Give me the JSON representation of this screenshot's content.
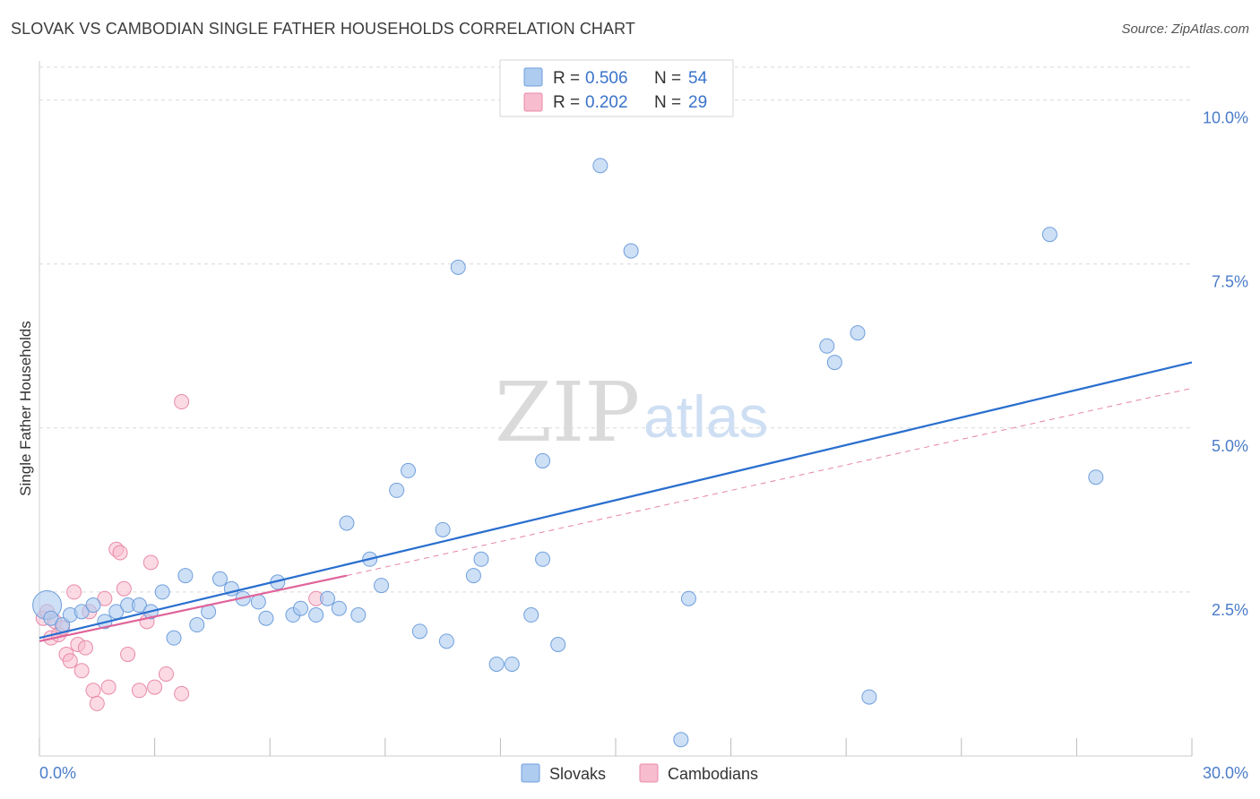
{
  "title": "SLOVAK VS CAMBODIAN SINGLE FATHER HOUSEHOLDS CORRELATION CHART",
  "source": "Source: ZipAtlas.com",
  "watermark": {
    "zip": "ZIP",
    "atlas": "atlas"
  },
  "colors": {
    "slovak_fill": "#aecbf0",
    "slovak_stroke": "#6f9fdc",
    "slovak_line": "#2a6fcf",
    "cambodian_fill": "#f7bccd",
    "cambodian_stroke": "#e98aa8",
    "cambodian_line": "#e0649a",
    "grid": "#d9d9d9",
    "tick_text": "#4a7cc9"
  },
  "legend": {
    "rows": [
      {
        "r_label": "R = ",
        "r_value": "0.506",
        "n_label": "N = ",
        "n_value": "54"
      },
      {
        "r_label": "R = ",
        "r_value": "0.202",
        "n_label": "N = ",
        "n_value": "29"
      }
    ]
  },
  "bottom_legend": [
    "Slovaks",
    "Cambodians"
  ],
  "chart_data": {
    "type": "scatter",
    "title": "SLOVAK VS CAMBODIAN SINGLE FATHER HOUSEHOLDS CORRELATION CHART",
    "xlabel": "",
    "ylabel": "Single Father Households",
    "xlim": [
      0,
      30
    ],
    "ylim": [
      0,
      10.5
    ],
    "x_tick_labels": [
      {
        "value": 0,
        "label": "0.0%"
      },
      {
        "value": 30,
        "label": "30.0%"
      }
    ],
    "y_tick_labels": [
      {
        "value": 2.5,
        "label": "2.5%"
      },
      {
        "value": 5.0,
        "label": "5.0%"
      },
      {
        "value": 7.5,
        "label": "7.5%"
      },
      {
        "value": 10.0,
        "label": "10.0%"
      }
    ],
    "y_gridlines": [
      2.5,
      5.0,
      7.5,
      10.0
    ],
    "x_minor_ticks": [
      0,
      3,
      6,
      9,
      12,
      15,
      18,
      21,
      24,
      27,
      30
    ],
    "series": [
      {
        "name": "Slovaks",
        "R": 0.506,
        "N": 54,
        "trend": {
          "x": [
            0,
            30
          ],
          "y": [
            1.8,
            6.0
          ],
          "style": "solid"
        },
        "points": [
          {
            "x": 0.2,
            "y": 2.3,
            "big": true
          },
          {
            "x": 0.3,
            "y": 2.1
          },
          {
            "x": 0.6,
            "y": 2.0
          },
          {
            "x": 0.8,
            "y": 2.15
          },
          {
            "x": 1.1,
            "y": 2.2
          },
          {
            "x": 1.4,
            "y": 2.3
          },
          {
            "x": 1.7,
            "y": 2.05
          },
          {
            "x": 2.0,
            "y": 2.2
          },
          {
            "x": 2.3,
            "y": 2.3
          },
          {
            "x": 2.6,
            "y": 2.3
          },
          {
            "x": 2.9,
            "y": 2.2
          },
          {
            "x": 3.2,
            "y": 2.5
          },
          {
            "x": 3.5,
            "y": 1.8
          },
          {
            "x": 3.8,
            "y": 2.75
          },
          {
            "x": 4.1,
            "y": 2.0
          },
          {
            "x": 4.4,
            "y": 2.2
          },
          {
            "x": 4.7,
            "y": 2.7
          },
          {
            "x": 5.0,
            "y": 2.55
          },
          {
            "x": 5.3,
            "y": 2.4
          },
          {
            "x": 5.7,
            "y": 2.35
          },
          {
            "x": 5.9,
            "y": 2.1
          },
          {
            "x": 6.2,
            "y": 2.65
          },
          {
            "x": 6.6,
            "y": 2.15
          },
          {
            "x": 6.8,
            "y": 2.25
          },
          {
            "x": 7.2,
            "y": 2.15
          },
          {
            "x": 7.5,
            "y": 2.4
          },
          {
            "x": 7.8,
            "y": 2.25
          },
          {
            "x": 8.0,
            "y": 3.55
          },
          {
            "x": 8.3,
            "y": 2.15
          },
          {
            "x": 8.6,
            "y": 3.0
          },
          {
            "x": 8.9,
            "y": 2.6
          },
          {
            "x": 9.3,
            "y": 4.05
          },
          {
            "x": 9.6,
            "y": 4.35
          },
          {
            "x": 9.9,
            "y": 1.9
          },
          {
            "x": 10.5,
            "y": 3.45
          },
          {
            "x": 10.6,
            "y": 1.75
          },
          {
            "x": 10.9,
            "y": 7.45
          },
          {
            "x": 11.3,
            "y": 2.75
          },
          {
            "x": 11.5,
            "y": 3.0
          },
          {
            "x": 11.9,
            "y": 1.4
          },
          {
            "x": 12.3,
            "y": 1.4
          },
          {
            "x": 12.8,
            "y": 2.15
          },
          {
            "x": 13.1,
            "y": 4.5
          },
          {
            "x": 13.1,
            "y": 3.0
          },
          {
            "x": 13.5,
            "y": 1.7
          },
          {
            "x": 14.6,
            "y": 9.0
          },
          {
            "x": 15.4,
            "y": 7.7
          },
          {
            "x": 16.7,
            "y": 0.25
          },
          {
            "x": 16.9,
            "y": 2.4
          },
          {
            "x": 20.5,
            "y": 6.25
          },
          {
            "x": 20.7,
            "y": 6.0
          },
          {
            "x": 21.3,
            "y": 6.45
          },
          {
            "x": 21.6,
            "y": 0.9
          },
          {
            "x": 26.3,
            "y": 7.95
          },
          {
            "x": 27.5,
            "y": 4.25
          }
        ]
      },
      {
        "name": "Cambodians",
        "R": 0.202,
        "N": 29,
        "trend": {
          "x": [
            0,
            8
          ],
          "y": [
            1.75,
            2.75
          ],
          "style": "solid",
          "extended": {
            "x": [
              8,
              30
            ],
            "y": [
              2.75,
              5.6
            ],
            "style": "dashed"
          }
        },
        "points": [
          {
            "x": 0.1,
            "y": 2.1
          },
          {
            "x": 0.2,
            "y": 2.2
          },
          {
            "x": 0.3,
            "y": 1.8
          },
          {
            "x": 0.4,
            "y": 2.05
          },
          {
            "x": 0.5,
            "y": 1.85
          },
          {
            "x": 0.6,
            "y": 1.95
          },
          {
            "x": 0.7,
            "y": 1.55
          },
          {
            "x": 0.8,
            "y": 1.45
          },
          {
            "x": 0.9,
            "y": 2.5
          },
          {
            "x": 1.0,
            "y": 1.7
          },
          {
            "x": 1.1,
            "y": 1.3
          },
          {
            "x": 1.2,
            "y": 1.65
          },
          {
            "x": 1.3,
            "y": 2.2
          },
          {
            "x": 1.4,
            "y": 1.0
          },
          {
            "x": 1.5,
            "y": 0.8
          },
          {
            "x": 1.7,
            "y": 2.4
          },
          {
            "x": 1.8,
            "y": 1.05
          },
          {
            "x": 2.0,
            "y": 3.15
          },
          {
            "x": 2.1,
            "y": 3.1
          },
          {
            "x": 2.2,
            "y": 2.55
          },
          {
            "x": 2.3,
            "y": 1.55
          },
          {
            "x": 2.6,
            "y": 1.0
          },
          {
            "x": 2.8,
            "y": 2.05
          },
          {
            "x": 2.9,
            "y": 2.95
          },
          {
            "x": 3.0,
            "y": 1.05
          },
          {
            "x": 3.3,
            "y": 1.25
          },
          {
            "x": 3.7,
            "y": 0.95
          },
          {
            "x": 3.7,
            "y": 5.4
          },
          {
            "x": 7.2,
            "y": 2.4
          }
        ]
      }
    ]
  }
}
